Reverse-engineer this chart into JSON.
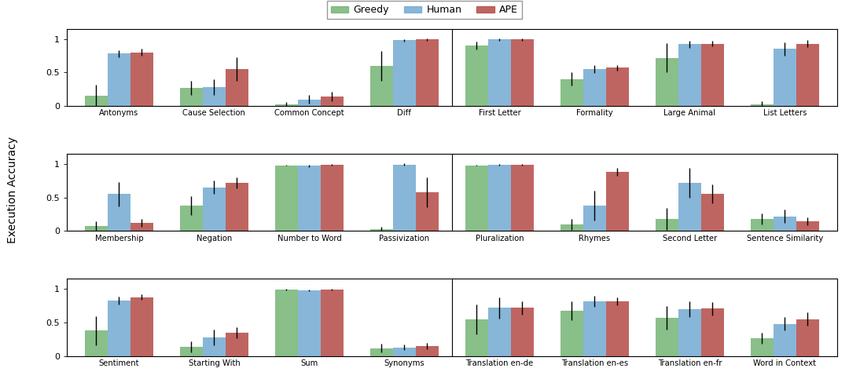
{
  "rows": [
    {
      "categories": [
        "Antonyms",
        "Cause Selection",
        "Common Concept",
        "Diff",
        "First Letter",
        "Formality",
        "Large Animal",
        "List Letters"
      ],
      "greedy": [
        0.15,
        0.27,
        0.03,
        0.6,
        0.9,
        0.4,
        0.72,
        0.03
      ],
      "human": [
        0.78,
        0.28,
        0.1,
        0.98,
        0.99,
        0.55,
        0.92,
        0.85
      ],
      "ape": [
        0.8,
        0.55,
        0.14,
        0.99,
        0.99,
        0.57,
        0.93,
        0.93
      ],
      "greedy_err": [
        0.17,
        0.1,
        0.03,
        0.22,
        0.06,
        0.1,
        0.22,
        0.04
      ],
      "human_err": [
        0.05,
        0.12,
        0.06,
        0.02,
        0.02,
        0.06,
        0.05,
        0.1
      ],
      "ape_err": [
        0.05,
        0.18,
        0.07,
        0.02,
        0.02,
        0.04,
        0.04,
        0.05
      ]
    },
    {
      "categories": [
        "Membership",
        "Negation",
        "Number to Word",
        "Passivization",
        "Pluralization",
        "Rhymes",
        "Second Letter",
        "Sentence Similarity"
      ],
      "greedy": [
        0.07,
        0.38,
        0.98,
        0.03,
        0.98,
        0.1,
        0.18,
        0.18
      ],
      "human": [
        0.55,
        0.65,
        0.97,
        0.99,
        0.99,
        0.38,
        0.72,
        0.22
      ],
      "ape": [
        0.12,
        0.72,
        0.99,
        0.58,
        0.99,
        0.88,
        0.56,
        0.15
      ],
      "greedy_err": [
        0.07,
        0.14,
        0.01,
        0.03,
        0.01,
        0.08,
        0.16,
        0.08
      ],
      "human_err": [
        0.18,
        0.1,
        0.02,
        0.02,
        0.01,
        0.22,
        0.22,
        0.1
      ],
      "ape_err": [
        0.06,
        0.08,
        0.01,
        0.22,
        0.01,
        0.06,
        0.14,
        0.06
      ]
    },
    {
      "categories": [
        "Sentiment",
        "Starting With",
        "Sum",
        "Synonyms",
        "Translation en-de",
        "Translation en-es",
        "Translation en-fr",
        "Word in Context"
      ],
      "greedy": [
        0.38,
        0.14,
        0.99,
        0.12,
        0.55,
        0.68,
        0.57,
        0.27
      ],
      "human": [
        0.83,
        0.28,
        0.98,
        0.13,
        0.72,
        0.82,
        0.7,
        0.48
      ],
      "ape": [
        0.88,
        0.35,
        0.99,
        0.15,
        0.72,
        0.82,
        0.71,
        0.55
      ],
      "greedy_err": [
        0.22,
        0.08,
        0.01,
        0.06,
        0.22,
        0.14,
        0.18,
        0.08
      ],
      "human_err": [
        0.06,
        0.12,
        0.01,
        0.04,
        0.16,
        0.08,
        0.12,
        0.1
      ],
      "ape_err": [
        0.04,
        0.08,
        0.01,
        0.05,
        0.1,
        0.06,
        0.1,
        0.1
      ]
    }
  ],
  "colors": {
    "greedy": "#7cb87c",
    "human": "#7aaed4",
    "ape": "#b85450"
  },
  "ylabel": "Execution Accuracy",
  "legend_labels": [
    "Greedy",
    "Human",
    "APE"
  ],
  "figsize": [
    10.8,
    4.83
  ],
  "background_color": "#ffffff",
  "bar_width": 0.24,
  "yticks": [
    0,
    0.5,
    1
  ],
  "ylim": [
    0,
    1.15
  ]
}
